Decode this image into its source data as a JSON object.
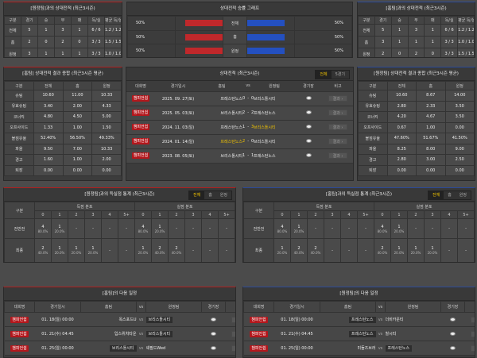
{
  "h2h_left": {
    "title": "[원정팀]과의 상대전적 (최근3시즌)",
    "headers": [
      "구분",
      "경기",
      "승",
      "무",
      "패",
      "득/실",
      "평균 득/실"
    ],
    "rows": [
      [
        "전체",
        "5",
        "1",
        "3",
        "1",
        "6 / 6",
        "1.2 / 1.2"
      ],
      [
        "홈",
        "2",
        "0",
        "2",
        "0",
        "3 / 3",
        "1.5 / 1.5"
      ],
      [
        "원정",
        "3",
        "1",
        "1",
        "1",
        "3 / 3",
        "1.0 / 1.0"
      ]
    ]
  },
  "h2h_right": {
    "title": "[홈팀]과의 상대전적 (최근3시즌)",
    "headers": [
      "구분",
      "경기",
      "승",
      "무",
      "패",
      "득/실",
      "평균 득/실"
    ],
    "rows": [
      [
        "전체",
        "5",
        "1",
        "3",
        "1",
        "6 / 6",
        "1.2 / 1.2"
      ],
      [
        "홈",
        "3",
        "1",
        "1",
        "1",
        "3 / 3",
        "1.0 / 1.0"
      ],
      [
        "원정",
        "2",
        "0",
        "2",
        "0",
        "3 / 3",
        "1.5 / 1.5"
      ]
    ]
  },
  "winrate": {
    "title": "상대전적 승률 그래프",
    "home_color": "#c0282b",
    "away_color": "#2450c0",
    "rows": [
      {
        "left": "50%",
        "label": "전체",
        "right": "50%",
        "home_pct": 50,
        "away_pct": 50
      },
      {
        "left": "50%",
        "label": "홈",
        "right": "50%",
        "home_pct": 50,
        "away_pct": 50
      },
      {
        "left": "50%",
        "label": "원정",
        "right": "50%",
        "home_pct": 50,
        "away_pct": 50
      }
    ]
  },
  "stats_left": {
    "title": "[홈팀] 상대전적 결과 종합 (최근3시즌 평균)",
    "headers": [
      "구분",
      "전체",
      "홈",
      "원정"
    ],
    "rows": [
      [
        "슈팅",
        "10.60",
        "11.00",
        "10.33"
      ],
      [
        "유효슈팅",
        "3.40",
        "2.00",
        "4.33"
      ],
      [
        "코너킥",
        "4.80",
        "4.50",
        "5.00"
      ],
      [
        "오프사이드",
        "1.33",
        "1.00",
        "1.50"
      ],
      [
        "볼점유율",
        "52.40%",
        "56.50%",
        "49.33%"
      ],
      [
        "파울",
        "9.50",
        "7.00",
        "10.33"
      ],
      [
        "경고",
        "1.60",
        "1.00",
        "2.00"
      ],
      [
        "퇴장",
        "0.00",
        "0.00",
        "0.00"
      ]
    ]
  },
  "stats_right": {
    "title": "[원정팀] 상대전적 결과 종합 (최근3시즌 평균)",
    "headers": [
      "구분",
      "전체",
      "홈",
      "원정"
    ],
    "rows": [
      [
        "슈팅",
        "10.60",
        "8.67",
        "14.00"
      ],
      [
        "유효슈팅",
        "2.80",
        "2.33",
        "3.50"
      ],
      [
        "코너킥",
        "4.20",
        "4.67",
        "3.50"
      ],
      [
        "오프사이드",
        "0.67",
        "1.00",
        "0.00"
      ],
      [
        "볼점유율",
        "47.60%",
        "51.67%",
        "41.50%"
      ],
      [
        "파울",
        "8.25",
        "8.00",
        "9.00"
      ],
      [
        "경고",
        "2.80",
        "3.00",
        "2.50"
      ],
      [
        "퇴장",
        "0.00",
        "0.00",
        "0.00"
      ]
    ]
  },
  "matches": {
    "title": "상대전적 (최근3시즌)",
    "tabs": [
      "전체",
      "5경기"
    ],
    "headers": [
      "대회명",
      "경기일시",
      "홈팀",
      "vs",
      "원정팀",
      "경기장",
      "비고"
    ],
    "button": "결과 ›",
    "rows": [
      {
        "league": "챔피언쉽",
        "date": "2025. 09. 27(토)",
        "home": "프레스턴노스",
        "hs": "0",
        "sep": "-",
        "as": "0",
        "away": "브리스톨시티",
        "winner": ""
      },
      {
        "league": "챔피언쉽",
        "date": "2025. 05. 03(토)",
        "home": "브리스톨시티",
        "hs": "2",
        "sep": "-",
        "as": "2",
        "away": "프레스턴노스",
        "winner": ""
      },
      {
        "league": "챔피언쉽",
        "date": "2024. 11. 03(일)",
        "home": "프레스턴노스",
        "hs": "1",
        "sep": "-",
        "as": "3",
        "away": "브리스톨시티",
        "winner": "away"
      },
      {
        "league": "챔피언쉽",
        "date": "2024. 01. 14(일)",
        "home": "프레스턴노스",
        "hs": "2",
        "sep": "-",
        "as": "0",
        "away": "브리스톨시티",
        "winner": "home"
      },
      {
        "league": "챔피언쉽",
        "date": "2023. 08. 05(토)",
        "home": "브리스톨시티",
        "hs": "1",
        "sep": "-",
        "as": "1",
        "away": "프레스턴노스",
        "winner": ""
      }
    ]
  },
  "goals_left": {
    "title": "[원정팀]과의 득실점 통계 (최근3시즌)",
    "tabs": [
      "전체",
      "홈",
      "원정"
    ],
    "label_col": "구분",
    "scored": "득점 분포",
    "conceded": "실점 분포",
    "buckets": [
      "0",
      "1",
      "2",
      "3",
      "4",
      "5+"
    ],
    "rows": [
      {
        "label": "전반전",
        "scored": [
          [
            "4",
            "80.0%"
          ],
          [
            "1",
            "20.0%"
          ],
          [
            "-",
            ""
          ],
          [
            "-",
            ""
          ],
          [
            "-",
            ""
          ],
          [
            "-",
            ""
          ]
        ],
        "conceded": [
          [
            "4",
            "80.0%"
          ],
          [
            "1",
            "20.0%"
          ],
          [
            "-",
            ""
          ],
          [
            "-",
            ""
          ],
          [
            "-",
            ""
          ],
          [
            "-",
            ""
          ]
        ]
      },
      {
        "label": "최종",
        "scored": [
          [
            "2",
            "40.0%"
          ],
          [
            "1",
            "20.0%"
          ],
          [
            "1",
            "20.0%"
          ],
          [
            "1",
            "20.0%"
          ],
          [
            "-",
            ""
          ],
          [
            "-",
            ""
          ]
        ],
        "conceded": [
          [
            "1",
            "20.0%"
          ],
          [
            "2",
            "40.0%"
          ],
          [
            "2",
            "40.0%"
          ],
          [
            "-",
            ""
          ],
          [
            "-",
            ""
          ],
          [
            "-",
            ""
          ]
        ]
      }
    ]
  },
  "goals_right": {
    "title": "[홈팀]과의 득실점 통계 (최근3시즌)",
    "tabs": [
      "전체",
      "홈",
      "원정"
    ],
    "label_col": "구분",
    "scored": "득점 분포",
    "conceded": "실점 분포",
    "buckets": [
      "0",
      "1",
      "2",
      "3",
      "4",
      "5+"
    ],
    "rows": [
      {
        "label": "전반전",
        "scored": [
          [
            "4",
            "80.0%"
          ],
          [
            "1",
            "20.0%"
          ],
          [
            "-",
            ""
          ],
          [
            "-",
            ""
          ],
          [
            "-",
            ""
          ],
          [
            "-",
            ""
          ]
        ],
        "conceded": [
          [
            "4",
            "80.0%"
          ],
          [
            "1",
            "20.0%"
          ],
          [
            "-",
            ""
          ],
          [
            "-",
            ""
          ],
          [
            "-",
            ""
          ],
          [
            "-",
            ""
          ]
        ]
      },
      {
        "label": "최종",
        "scored": [
          [
            "1",
            "20.0%"
          ],
          [
            "2",
            "40.0%"
          ],
          [
            "2",
            "40.0%"
          ],
          [
            "-",
            ""
          ],
          [
            "-",
            ""
          ],
          [
            "-",
            ""
          ]
        ],
        "conceded": [
          [
            "2",
            "40.0%"
          ],
          [
            "1",
            "20.0%"
          ],
          [
            "1",
            "20.0%"
          ],
          [
            "1",
            "20.0%"
          ],
          [
            "-",
            ""
          ],
          [
            "-",
            ""
          ]
        ]
      }
    ]
  },
  "next_left": {
    "title": "[홈팀]의 다음 일정",
    "headers": [
      "대회명",
      "경기일시",
      "홈팀",
      "vs",
      "원정팀",
      "경기장",
      "비고"
    ],
    "button": "비교 ›",
    "rows": [
      {
        "league": "챔피언쉽",
        "date": "01. 18(일) 00:00",
        "home": "옥스포드U",
        "vs": "vs",
        "away": "브리스톨시티",
        "boxed": "away"
      },
      {
        "league": "챔피언쉽",
        "date": "01. 21(수) 04:45",
        "home": "입스위치타운",
        "vs": "vs",
        "away": "브리스톨시티",
        "boxed": "away"
      },
      {
        "league": "챔피언쉽",
        "date": "01. 25(일) 00:00",
        "home": "브리스톨시티",
        "vs": "vs",
        "away": "셰필드Wed",
        "boxed": "home"
      }
    ]
  },
  "next_right": {
    "title": "[원정팀]의 다음 일정",
    "headers": [
      "대회명",
      "경기일시",
      "홈팀",
      "vs",
      "원정팀",
      "경기장",
      "비고"
    ],
    "button": "비교 ›",
    "rows": [
      {
        "league": "챔피언쉽",
        "date": "01. 18(일) 00:00",
        "home": "프레스턴노스",
        "vs": "vs",
        "away": "더비카운티",
        "boxed": "home"
      },
      {
        "league": "챔피언쉽",
        "date": "01. 21(수) 04:45",
        "home": "프레스턴노스",
        "vs": "vs",
        "away": "헐시티",
        "boxed": "home"
      },
      {
        "league": "챔피언쉽",
        "date": "01. 25(일) 00:00",
        "home": "미들즈브러",
        "vs": "vs",
        "away": "프레스턴노스",
        "boxed": "away"
      }
    ]
  }
}
